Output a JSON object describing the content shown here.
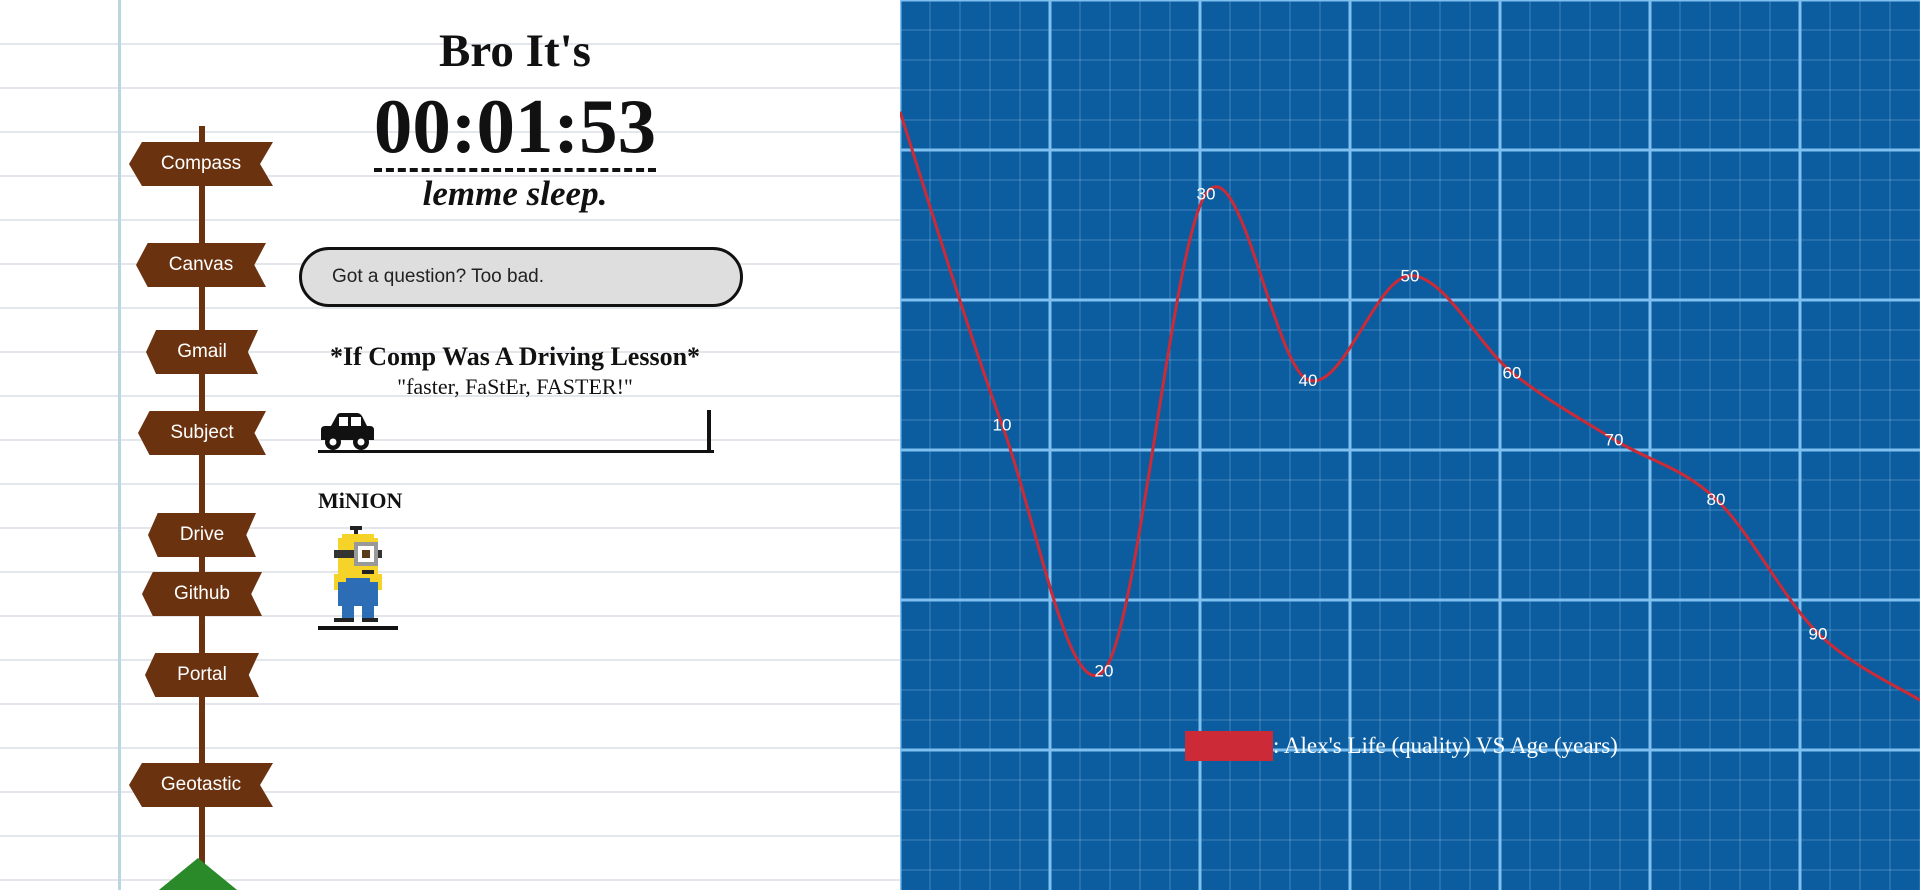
{
  "nav": {
    "items": [
      {
        "label": "Compass"
      },
      {
        "label": "Canvas"
      },
      {
        "label": "Gmail"
      },
      {
        "label": "Subject"
      },
      {
        "label": "Drive"
      },
      {
        "label": "Github"
      },
      {
        "label": "Portal"
      },
      {
        "label": "Geotastic"
      }
    ]
  },
  "header": {
    "title": "Bro It's",
    "timer": "00:01:53",
    "subtitle": "lemme sleep."
  },
  "question": {
    "text": "Got a question? Too bad."
  },
  "driving": {
    "title": "*If Comp Was A Driving Lesson*",
    "quote": "\"faster, FaStEr, FASTER!\"",
    "car_icon": "car-icon",
    "progress": 0
  },
  "minion": {
    "label": "MiNION",
    "icon": "minion-pixel-art"
  },
  "colors": {
    "signpost": "#6b3210",
    "blueprint": "#0c5da0",
    "line": "#cc2a36",
    "grid_major": "#7ec0f0",
    "tree": "#2a8a2a"
  },
  "chart_data": {
    "type": "line",
    "series": [
      {
        "name": "Alex's Life (quality) VS Age (years)",
        "points": [
          {
            "x": 0,
            "y": 85
          },
          {
            "x": 10,
            "y": 43
          },
          {
            "x": 20,
            "y": 10
          },
          {
            "x": 30,
            "y": 74
          },
          {
            "x": 40,
            "y": 49
          },
          {
            "x": 50,
            "y": 63
          },
          {
            "x": 60,
            "y": 50
          },
          {
            "x": 70,
            "y": 41
          },
          {
            "x": 80,
            "y": 33
          },
          {
            "x": 90,
            "y": 15
          },
          {
            "x": 100,
            "y": 6
          }
        ],
        "labels": [
          "",
          "10",
          "20",
          "30",
          "40",
          "50",
          "60",
          "70",
          "80",
          "90",
          ""
        ]
      }
    ],
    "legend": {
      "label": ": Alex's Life (quality) VS Age (years)",
      "color": "#cc2a36",
      "position": "bottom-center"
    },
    "grid": true
  }
}
